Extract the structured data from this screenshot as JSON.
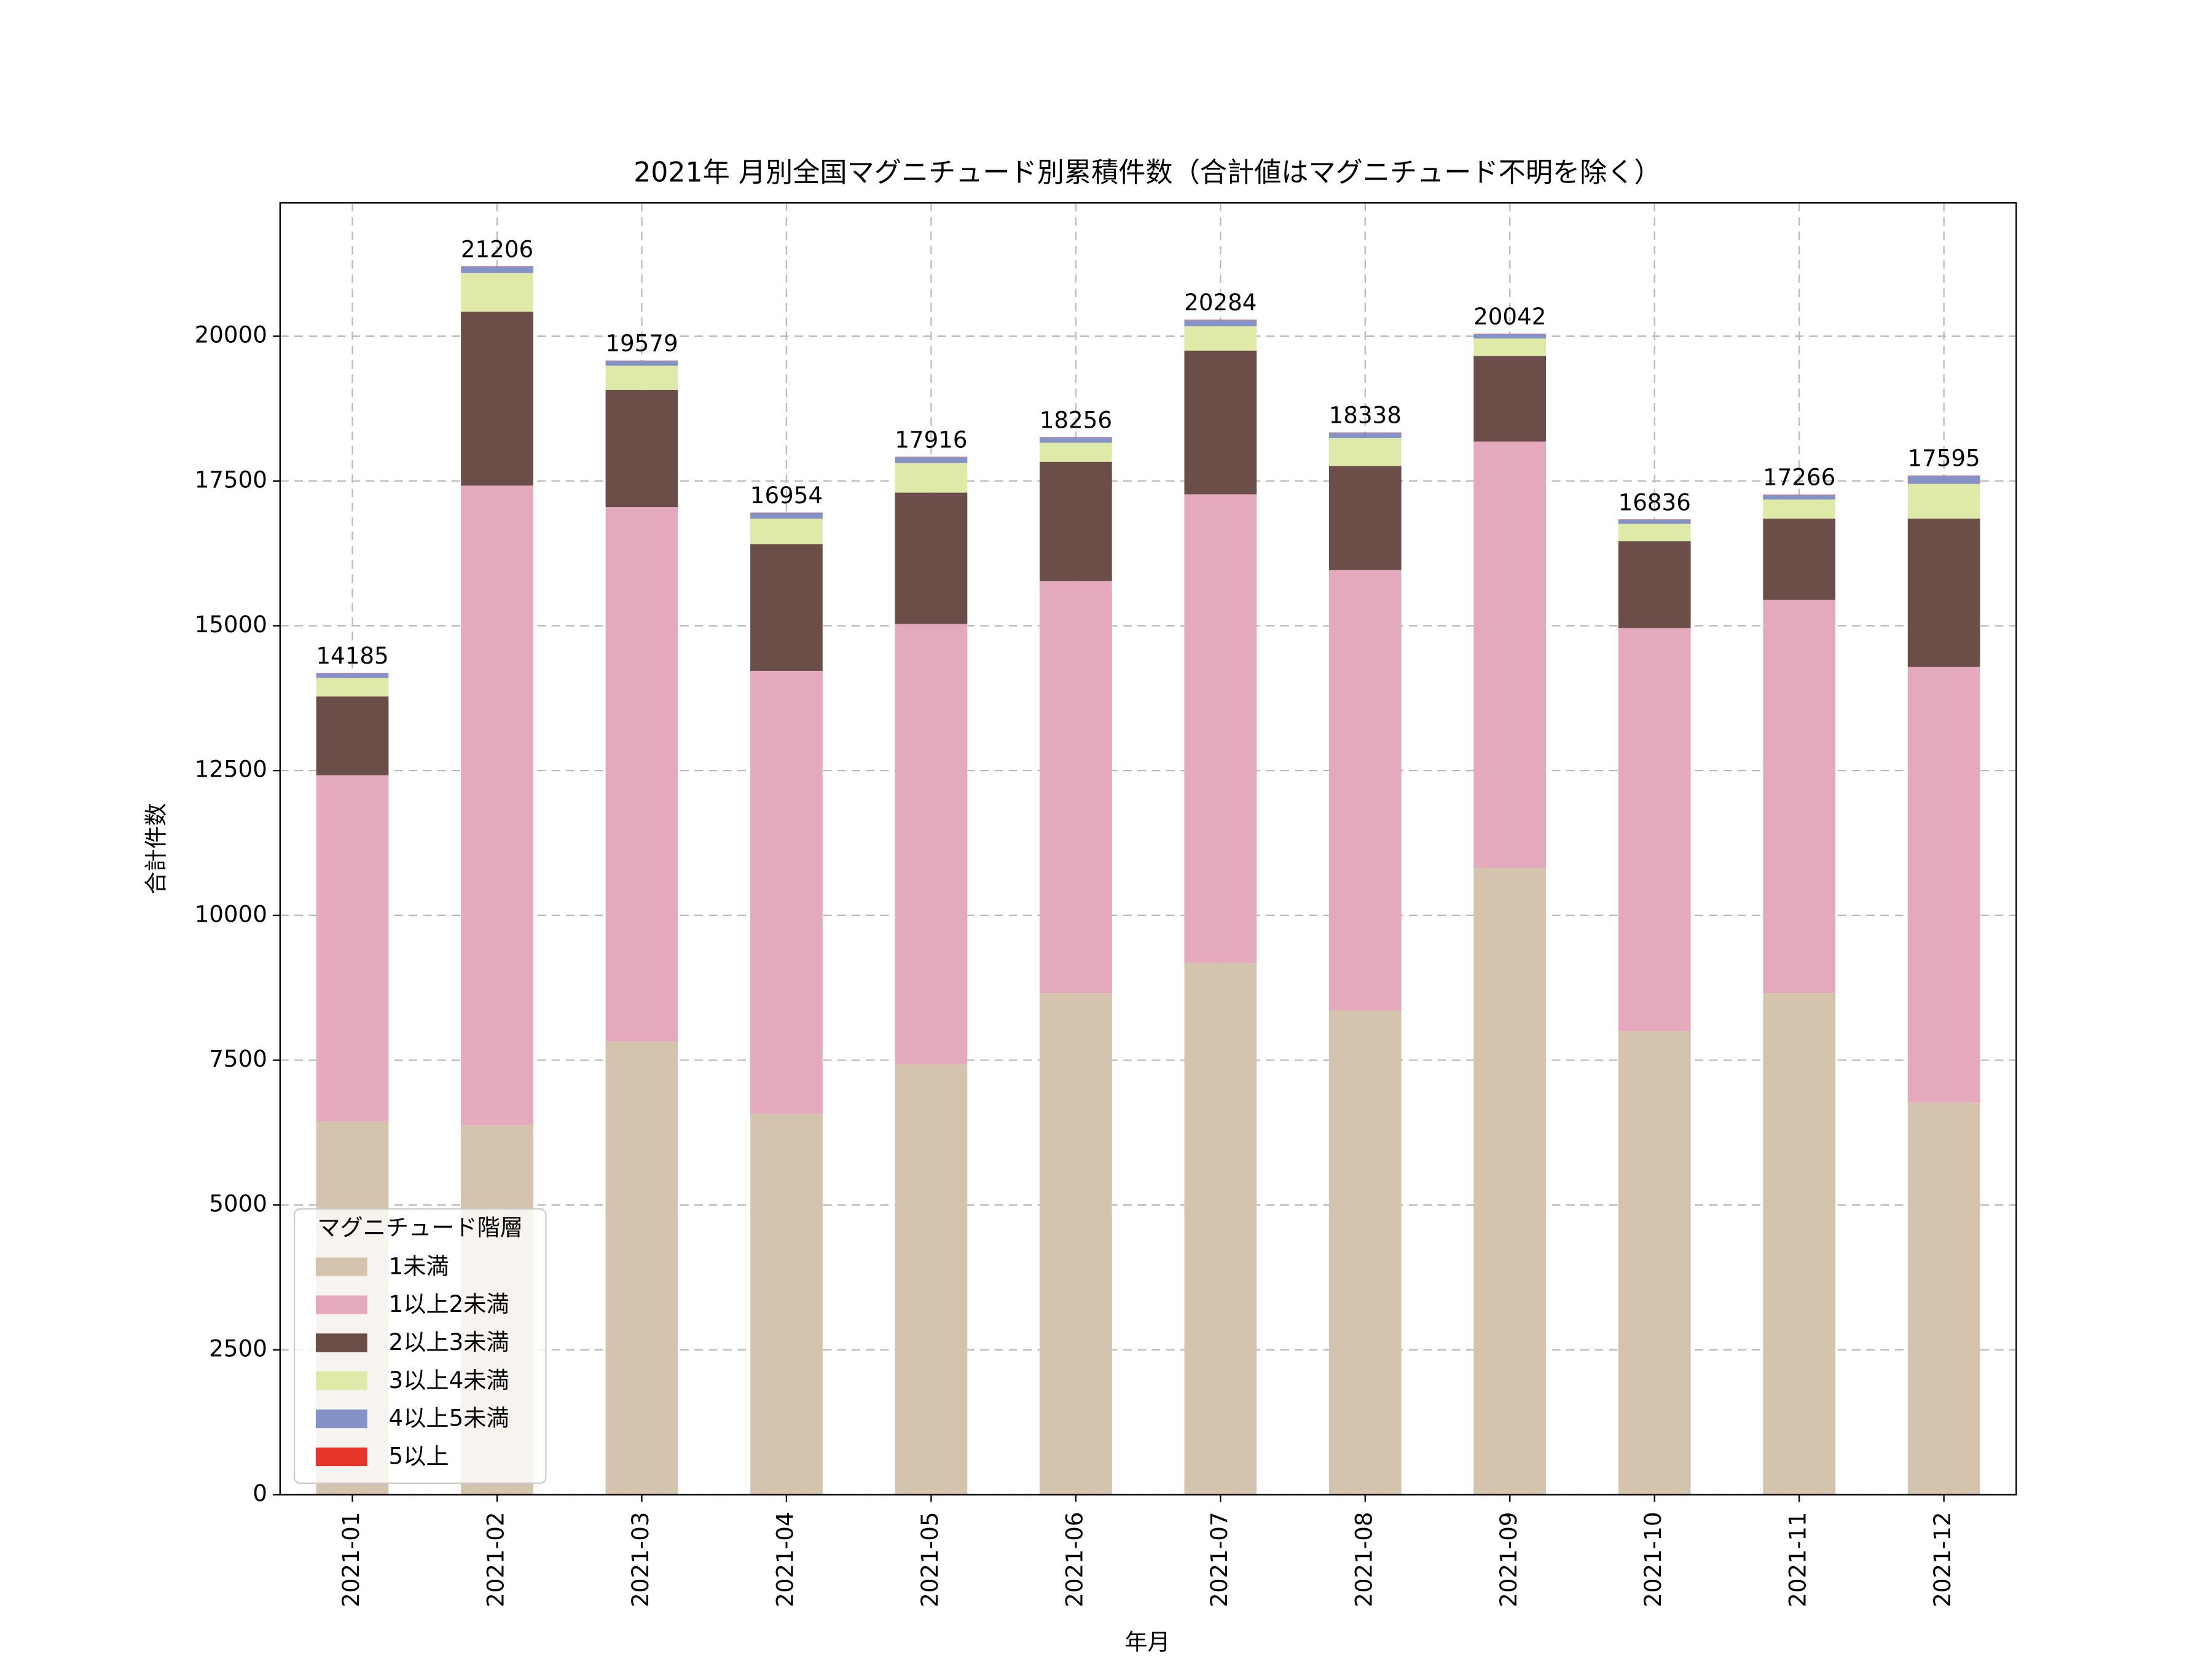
{
  "chart_data": {
    "type": "bar",
    "stacked": true,
    "title": "2021年 月別全国マグニチュード別累積件数（合計値はマグニチュード不明を除く）",
    "x_label": "年月",
    "y_label": "合計件数",
    "categories": [
      "2021-01",
      "2021-02",
      "2021-03",
      "2021-04",
      "2021-05",
      "2021-06",
      "2021-07",
      "2021-08",
      "2021-09",
      "2021-10",
      "2021-11",
      "2021-12"
    ],
    "series": [
      {
        "name": "1未満",
        "color": "#d5c4ad",
        "values": [
          6440,
          6380,
          7820,
          6570,
          7430,
          8660,
          9180,
          8360,
          10820,
          8000,
          8660,
          6770
        ]
      },
      {
        "name": "1以上2未満",
        "color": "#e5a9bd",
        "values": [
          5980,
          11040,
          9230,
          7650,
          7600,
          7110,
          8090,
          7600,
          7360,
          6960,
          6790,
          7520
        ]
      },
      {
        "name": "2以上3未満",
        "color": "#6b4e47",
        "values": [
          1360,
          3000,
          2020,
          2190,
          2270,
          2060,
          2480,
          1800,
          1480,
          1500,
          1400,
          2560
        ]
      },
      {
        "name": "3以上4未満",
        "color": "#dfeaa8",
        "values": [
          320,
          670,
          420,
          440,
          510,
          330,
          420,
          480,
          300,
          300,
          330,
          600
        ]
      },
      {
        "name": "4以上5未満",
        "color": "#8592c7",
        "values": [
          80,
          110,
          85,
          100,
          100,
          90,
          108,
          92,
          76,
          70,
          80,
          140
        ]
      },
      {
        "name": "5以上",
        "color": "#e8352a",
        "values": [
          5,
          6,
          4,
          4,
          6,
          6,
          6,
          6,
          6,
          6,
          6,
          5
        ]
      }
    ],
    "totals": [
      14185,
      21206,
      19579,
      16954,
      17916,
      18256,
      20284,
      18338,
      20042,
      16836,
      17266,
      17595
    ],
    "ylim": [
      0,
      22300
    ],
    "yticks": [
      0,
      2500,
      5000,
      7500,
      10000,
      12500,
      15000,
      17500,
      20000
    ],
    "grid": true,
    "legend_title": "マグニチュード階層",
    "legend_loc": "lower left"
  }
}
